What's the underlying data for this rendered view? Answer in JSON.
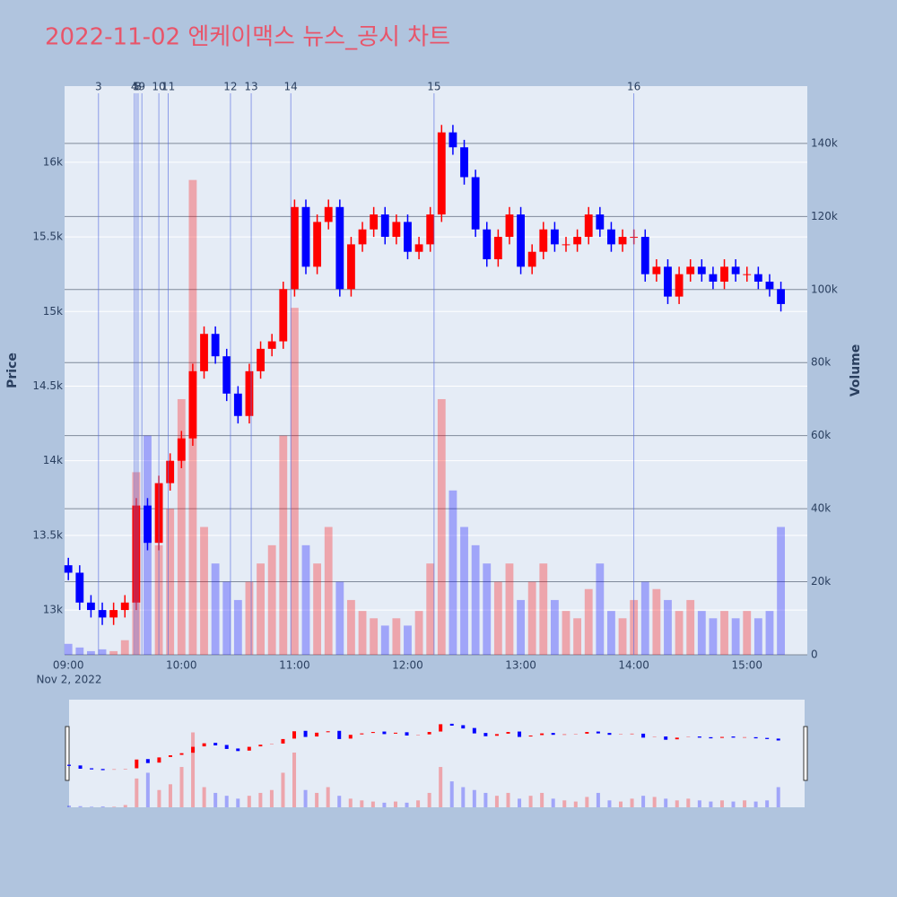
{
  "chart_data": {
    "type": "candlestick",
    "title": "2022-11-02 엔케이맥스 뉴스_공시 차트",
    "y_label": "Price",
    "y2_label": "Volume",
    "x_date_label": "Nov 2, 2022",
    "up_color": "#ff0000",
    "down_color": "#0000ff",
    "x": [
      "09:00",
      "09:06",
      "09:12",
      "09:18",
      "09:24",
      "09:30",
      "09:36",
      "09:42",
      "09:48",
      "09:54",
      "10:00",
      "10:06",
      "10:12",
      "10:18",
      "10:24",
      "10:30",
      "10:36",
      "10:42",
      "10:48",
      "10:54",
      "11:00",
      "11:06",
      "11:12",
      "11:18",
      "11:24",
      "11:30",
      "11:36",
      "11:42",
      "11:48",
      "11:54",
      "12:00",
      "12:06",
      "12:12",
      "12:18",
      "12:24",
      "12:30",
      "12:36",
      "12:42",
      "12:48",
      "12:54",
      "13:00",
      "13:06",
      "13:12",
      "13:18",
      "13:24",
      "13:30",
      "13:36",
      "13:42",
      "13:48",
      "13:54",
      "14:00",
      "14:06",
      "14:12",
      "14:18",
      "14:24",
      "14:30",
      "14:36",
      "14:42",
      "14:48",
      "14:54",
      "15:00",
      "15:06",
      "15:12",
      "15:18"
    ],
    "open": [
      13300,
      13250,
      13050,
      13000,
      12950,
      13000,
      13050,
      13700,
      13450,
      13850,
      14000,
      14150,
      14600,
      14850,
      14700,
      14450,
      14300,
      14600,
      14750,
      14800,
      15150,
      15700,
      15300,
      15600,
      15700,
      15150,
      15450,
      15550,
      15650,
      15500,
      15600,
      15400,
      15450,
      15650,
      16200,
      16100,
      15900,
      15550,
      15350,
      15500,
      15650,
      15300,
      15400,
      15550,
      15450,
      15450,
      15500,
      15650,
      15550,
      15450,
      15500,
      15500,
      15250,
      15300,
      15100,
      15250,
      15300,
      15250,
      15200,
      15300,
      15250,
      15250,
      15200,
      15150
    ],
    "high": [
      13350,
      13300,
      13100,
      13050,
      13050,
      13100,
      13750,
      13750,
      13900,
      14050,
      14200,
      14650,
      14900,
      14900,
      14750,
      14500,
      14650,
      14800,
      14850,
      15200,
      15750,
      15750,
      15650,
      15750,
      15750,
      15500,
      15600,
      15700,
      15700,
      15650,
      15650,
      15500,
      15700,
      16250,
      16250,
      16150,
      15950,
      15600,
      15550,
      15700,
      15700,
      15450,
      15600,
      15600,
      15500,
      15550,
      15700,
      15700,
      15600,
      15550,
      15550,
      15550,
      15350,
      15350,
      15300,
      15350,
      15350,
      15300,
      15350,
      15350,
      15300,
      15300,
      15250,
      15200
    ],
    "low": [
      13200,
      13000,
      12950,
      12900,
      12900,
      12950,
      13000,
      13400,
      13400,
      13800,
      13950,
      14100,
      14550,
      14650,
      14400,
      14250,
      14250,
      14550,
      14700,
      14750,
      15100,
      15250,
      15250,
      15550,
      15100,
      15100,
      15400,
      15500,
      15450,
      15450,
      15350,
      15350,
      15400,
      15600,
      16050,
      15850,
      15500,
      15300,
      15300,
      15450,
      15250,
      15250,
      15350,
      15400,
      15400,
      15400,
      15450,
      15500,
      15400,
      15400,
      15450,
      15200,
      15200,
      15050,
      15050,
      15200,
      15200,
      15150,
      15150,
      15200,
      15200,
      15150,
      15100,
      15000
    ],
    "close": [
      13250,
      13050,
      13000,
      12950,
      13000,
      13050,
      13700,
      13450,
      13850,
      14000,
      14150,
      14600,
      14850,
      14700,
      14450,
      14300,
      14600,
      14750,
      14800,
      15150,
      15700,
      15300,
      15600,
      15700,
      15150,
      15450,
      15550,
      15650,
      15500,
      15600,
      15400,
      15450,
      15650,
      16200,
      16100,
      15900,
      15550,
      15350,
      15500,
      15650,
      15300,
      15400,
      15550,
      15450,
      15450,
      15500,
      15650,
      15550,
      15450,
      15500,
      15500,
      15250,
      15300,
      15100,
      15250,
      15300,
      15250,
      15200,
      15300,
      15250,
      15250,
      15200,
      15150,
      15050
    ],
    "volume": [
      3000,
      2000,
      1000,
      1500,
      1000,
      4000,
      50000,
      60000,
      30000,
      40000,
      70000,
      130000,
      35000,
      25000,
      20000,
      15000,
      20000,
      25000,
      30000,
      60000,
      95000,
      30000,
      25000,
      35000,
      20000,
      15000,
      12000,
      10000,
      8000,
      10000,
      8000,
      12000,
      25000,
      70000,
      45000,
      35000,
      30000,
      25000,
      20000,
      25000,
      15000,
      20000,
      25000,
      15000,
      12000,
      10000,
      18000,
      25000,
      12000,
      10000,
      15000,
      20000,
      18000,
      15000,
      12000,
      15000,
      12000,
      10000,
      12000,
      10000,
      12000,
      10000,
      12000,
      35000
    ],
    "events": [
      {
        "label": "3",
        "x": "09:16"
      },
      {
        "label": "4",
        "x": "09:35"
      },
      {
        "label": "5",
        "x": "09:36"
      },
      {
        "label": "8",
        "x": "09:37"
      },
      {
        "label": "9",
        "x": "09:39"
      },
      {
        "label": "10",
        "x": "09:48"
      },
      {
        "label": "11",
        "x": "09:53"
      },
      {
        "label": "12",
        "x": "10:26"
      },
      {
        "label": "13",
        "x": "10:37"
      },
      {
        "label": "14",
        "x": "10:58"
      },
      {
        "label": "15",
        "x": "12:14"
      },
      {
        "label": "16",
        "x": "14:00"
      }
    ],
    "xlim": [
      "08:58",
      "15:32"
    ],
    "xticks": [
      "09:00",
      "10:00",
      "11:00",
      "12:00",
      "13:00",
      "14:00",
      "15:00"
    ],
    "ylim": [
      12700,
      16510
    ],
    "yticks": [
      {
        "value": 13000,
        "label": "13k"
      },
      {
        "value": 13500,
        "label": "13.5k"
      },
      {
        "value": 14000,
        "label": "14k"
      },
      {
        "value": 14500,
        "label": "14.5k"
      },
      {
        "value": 15000,
        "label": "15k"
      },
      {
        "value": 15500,
        "label": "15.5k"
      },
      {
        "value": 16000,
        "label": "16k"
      }
    ],
    "y2lim": [
      0,
      155700
    ],
    "y2ticks": [
      0,
      {
        "value": 20000,
        "label": "20k"
      },
      {
        "value": 40000,
        "label": "40k"
      },
      {
        "value": 60000,
        "label": "60k"
      },
      {
        "value": 80000,
        "label": "80k"
      },
      {
        "value": 100000,
        "label": "100k"
      },
      {
        "value": 120000,
        "label": "120k"
      },
      {
        "value": 140000,
        "label": "140k"
      }
    ]
  }
}
